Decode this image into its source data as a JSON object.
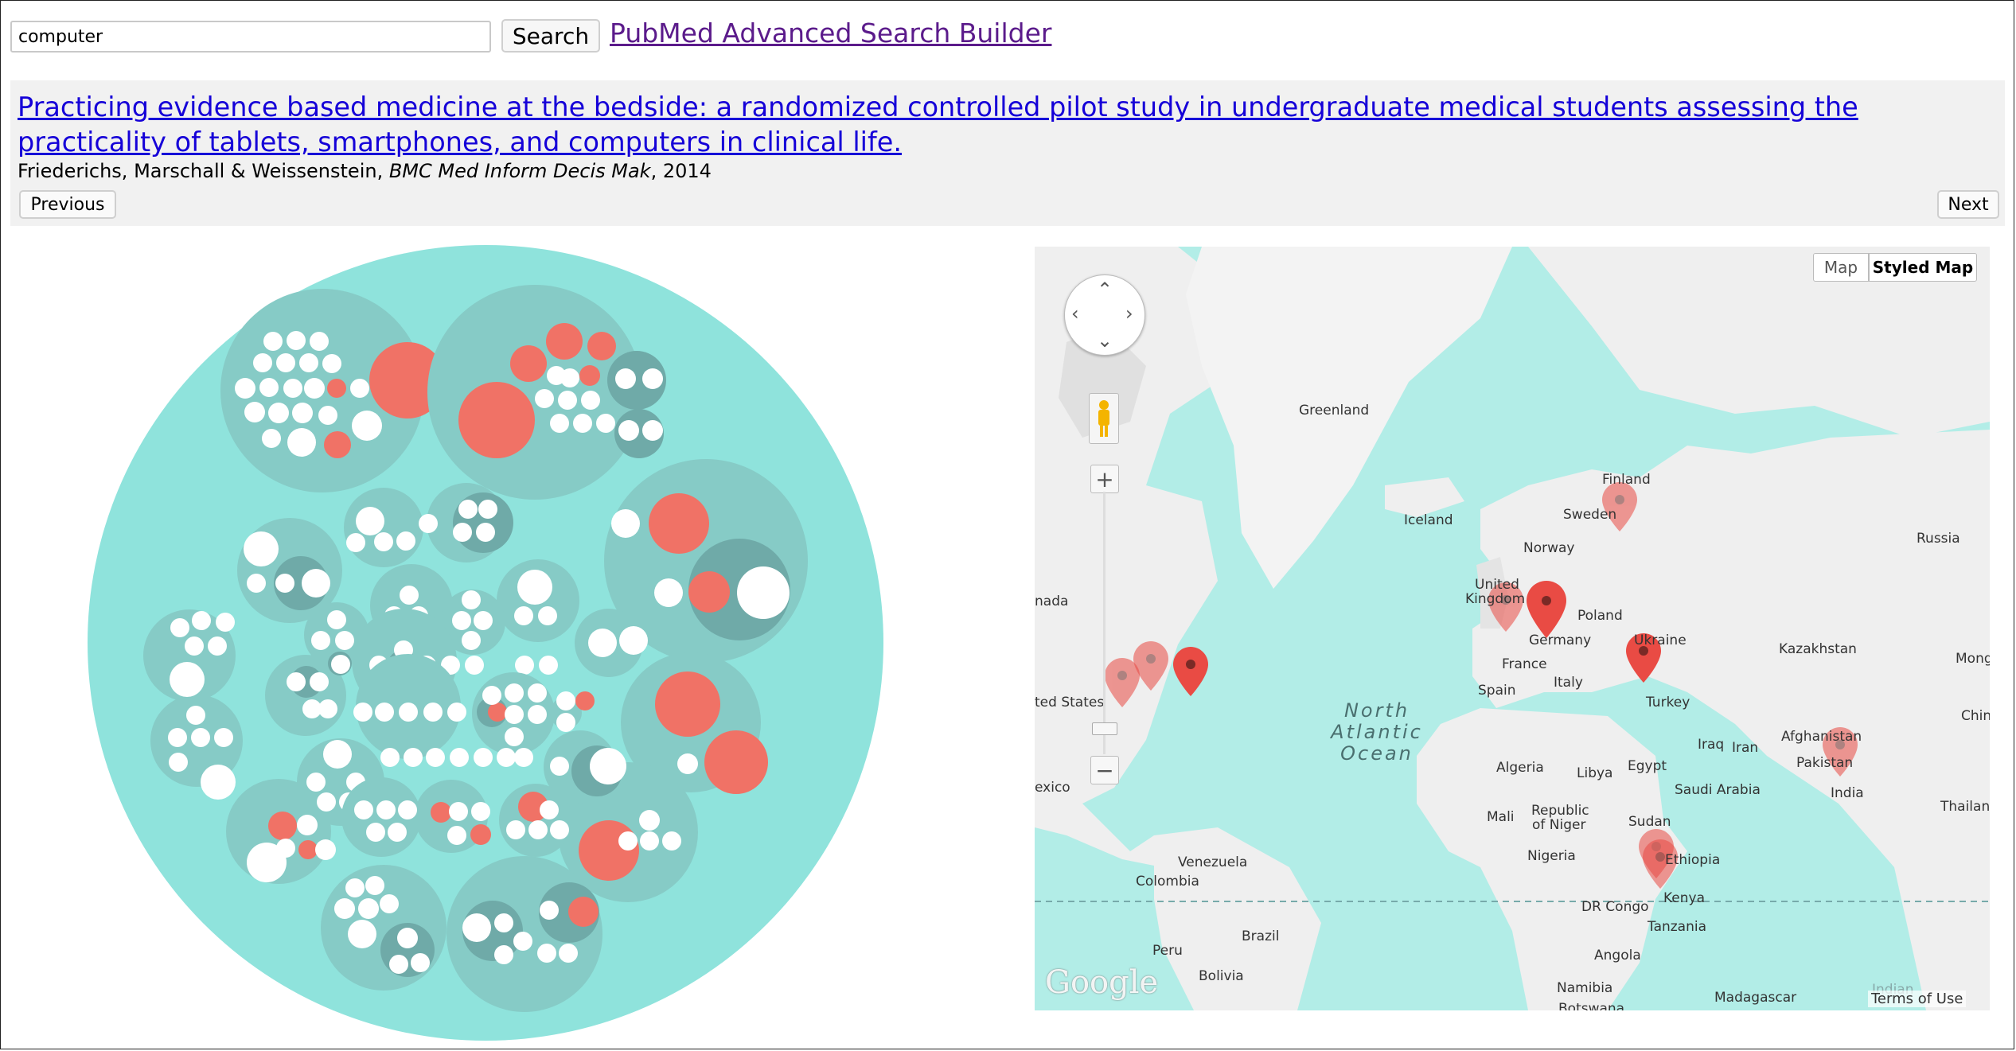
{
  "search": {
    "query": "computer",
    "button_label": "Search",
    "advanced_link": "PubMed Advanced Search Builder"
  },
  "article": {
    "title": "Practicing evidence based medicine at the bedside: a randomized controlled pilot study in undergraduate medical students assessing the practicality of tablets, smartphones, and computers in clinical life.",
    "authors": "Friederichs, Marschall & Weissenstein, ",
    "journal": "BMC Med Inform Decis Mak",
    "year": ", 2014",
    "prev_label": "Previous",
    "next_label": "Next"
  },
  "colors": {
    "bubble_outer": "#8fe3dc",
    "bubble_group": "#86cbc6",
    "bubble_sub": "#6faaa8",
    "highlight": "#f07266",
    "dot": "#ffffff",
    "map_water": "#b2ede7",
    "map_land": "#efefef",
    "marker": "#e94b44",
    "link": "#1500d8",
    "visited_link": "#5b1b8b"
  },
  "map": {
    "type_buttons": [
      "Map",
      "Styled Map"
    ],
    "selected_type": "Styled Map",
    "ocean_label": [
      "North",
      "Atlantic",
      "Ocean"
    ],
    "country_labels": [
      {
        "name": "Greenland"
      },
      {
        "name": "Iceland"
      },
      {
        "name": "Finland"
      },
      {
        "name": "Sweden"
      },
      {
        "name": "Norway"
      },
      {
        "name": "Russia"
      },
      {
        "name": "United"
      },
      {
        "name": "Kingdom"
      },
      {
        "name": "Poland"
      },
      {
        "name": "Germany"
      },
      {
        "name": "Ukraine"
      },
      {
        "name": "France"
      },
      {
        "name": "Italy"
      },
      {
        "name": "Kazakhstan"
      },
      {
        "name": "Mongo"
      },
      {
        "name": "Spain"
      },
      {
        "name": "Turkey"
      },
      {
        "name": "ted States"
      },
      {
        "name": "nada"
      },
      {
        "name": "Chin"
      },
      {
        "name": "Afghanistan"
      },
      {
        "name": "Iraq"
      },
      {
        "name": "Iran"
      },
      {
        "name": "Pakistan"
      },
      {
        "name": "Algeria"
      },
      {
        "name": "Libya"
      },
      {
        "name": "Egypt"
      },
      {
        "name": "Saudi Arabia"
      },
      {
        "name": "India"
      },
      {
        "name": "exico"
      },
      {
        "name": "Thailan"
      },
      {
        "name": "Mali"
      },
      {
        "name": "Republic"
      },
      {
        "name": "of Niger"
      },
      {
        "name": "Sudan"
      },
      {
        "name": "Nigeria"
      },
      {
        "name": "Ethiopia"
      },
      {
        "name": "Venezuela"
      },
      {
        "name": "Colombia"
      },
      {
        "name": "Kenya"
      },
      {
        "name": "DR Congo"
      },
      {
        "name": "Tanzania"
      },
      {
        "name": "Brazil"
      },
      {
        "name": "Peru"
      },
      {
        "name": "Angola"
      },
      {
        "name": "Bolivia"
      },
      {
        "name": "Namibia"
      },
      {
        "name": "Madagascar"
      },
      {
        "name": "Botswana"
      },
      {
        "name": "Indian"
      }
    ],
    "google_logo": "Google",
    "terms": "Terms of Use"
  }
}
